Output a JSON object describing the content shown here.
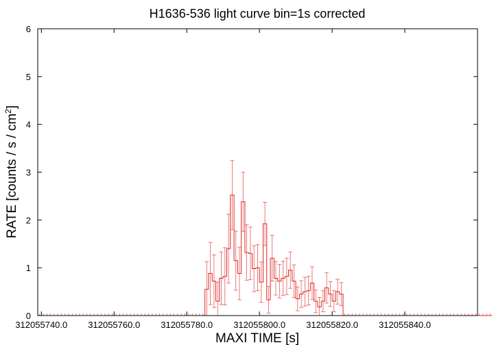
{
  "chart_data": {
    "type": "line",
    "style": "histogram-steps-with-error-bars",
    "title": "H1636-536 light curve bin=1s corrected",
    "xlabel": "MAXI TIME [s]",
    "ylabel_main": "RATE [counts / s / cm",
    "ylabel_sup": "2",
    "ylabel_close": "]",
    "xlim": [
      312055739.0,
      312055860.0
    ],
    "ylim": [
      0,
      6
    ],
    "x_ticks": [
      312055740,
      312055760,
      312055780,
      312055800,
      312055820,
      312055840
    ],
    "x_tick_labels": [
      "312055740.0",
      "312055760.0",
      "312055780.0",
      "312055800.0",
      "312055820.0",
      "312055840.0"
    ],
    "y_ticks": [
      0,
      1,
      2,
      3,
      4,
      5,
      6
    ],
    "y_tick_labels": [
      "0",
      "1",
      "2",
      "3",
      "4",
      "5",
      "6"
    ],
    "grid": false,
    "color": "#e02020",
    "bin_width": 1,
    "series": [
      {
        "x_start": 312055739.0,
        "values": [
          0,
          0,
          0,
          0,
          0,
          0,
          0,
          0,
          0,
          0,
          0,
          0,
          0,
          0,
          0,
          0,
          0,
          0,
          0,
          0,
          0,
          0,
          0,
          0,
          0,
          0,
          0,
          0,
          0,
          0,
          0,
          0,
          0,
          0,
          0,
          0,
          0,
          0,
          0,
          0,
          0,
          0,
          0,
          0,
          0,
          0,
          0.55,
          0.88,
          0.72,
          0.3,
          0.78,
          0.82,
          1.4,
          2.52,
          1.15,
          0.88,
          2.38,
          1.32,
          1.3,
          0.98,
          1.0,
          0.7,
          1.92,
          0.33,
          1.2,
          0.78,
          0.72,
          0.78,
          0.82,
          0.95,
          0.72,
          0.35,
          0.45,
          0.5,
          0.52,
          0.68,
          0.3,
          0.18,
          0.3,
          0.58,
          0.45,
          0.3,
          0.5,
          0.45,
          0,
          0,
          0,
          0,
          0,
          0,
          0,
          0,
          0,
          0,
          0,
          0,
          0,
          0,
          0,
          0,
          0,
          0,
          0,
          0,
          0,
          0,
          0,
          0,
          0,
          0,
          0,
          0,
          0,
          0,
          0,
          0,
          0,
          0,
          0,
          0,
          0,
          0,
          0,
          0,
          0
        ],
        "errors": [
          0,
          0,
          0,
          0,
          0,
          0,
          0,
          0,
          0,
          0,
          0,
          0,
          0,
          0,
          0,
          0,
          0,
          0,
          0,
          0,
          0,
          0,
          0,
          0,
          0,
          0,
          0,
          0,
          0,
          0,
          0,
          0,
          0,
          0,
          0,
          0,
          0,
          0,
          0,
          0,
          0,
          0,
          0,
          0,
          0,
          0,
          0.58,
          0.65,
          0.55,
          0.4,
          0.55,
          0.6,
          0.72,
          0.72,
          0.62,
          0.55,
          0.62,
          0.58,
          0.55,
          0.48,
          0.48,
          0.42,
          0.45,
          0.28,
          0.48,
          0.35,
          0.35,
          0.36,
          0.38,
          0.38,
          0.34,
          0.25,
          0.28,
          0.3,
          0.3,
          0.34,
          0.24,
          0.2,
          0.22,
          0.32,
          0.26,
          0.22,
          0.26,
          0.24,
          0,
          0,
          0,
          0,
          0,
          0,
          0,
          0,
          0,
          0,
          0,
          0,
          0,
          0,
          0,
          0,
          0,
          0,
          0,
          0,
          0,
          0,
          0,
          0,
          0,
          0,
          0,
          0,
          0,
          0,
          0,
          0,
          0,
          0,
          0,
          0,
          0,
          0,
          0,
          0,
          0
        ]
      }
    ]
  }
}
